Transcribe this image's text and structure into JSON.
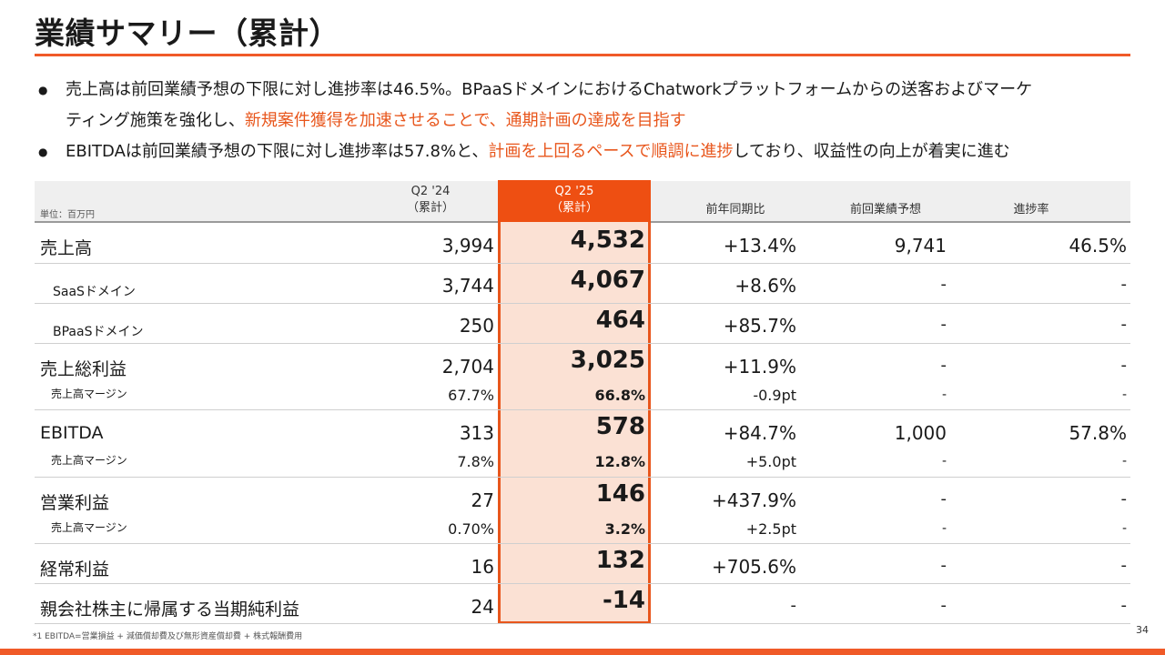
{
  "title": "業績サマリー（累計）",
  "bullets": [
    {
      "line1": "売上高は前回業績予想の下限に対し進捗率は46.5%。BPaaSドメインにおけるChatworkプラットフォームからの送客およびマーケ",
      "line2_normal": "ティング施策を強化し、",
      "line2_highlight": "新規案件獲得を加速させることで、通期計画の達成を目指す"
    },
    {
      "pre": "EBITDAは前回業績予想の下限に対し進捗率は57.8%と、",
      "highlight": "計画を上回るペースで順調に進捗",
      "post": "しており、収益性の向上が着実に進む"
    }
  ],
  "table": {
    "unit": "単位：百万円",
    "headers": {
      "q24_line1": "Q2 '24",
      "q24_line2": "（累計）",
      "q25_line1": "Q2 '25",
      "q25_line2": "（累計）",
      "yoy": "前年同期比",
      "prev_forecast": "前回業績予想",
      "progress": "進捗率"
    },
    "rows": {
      "sales": {
        "label": "売上高",
        "q24": "3,994",
        "q25": "4,532",
        "yoy": "+13.4%",
        "prev": "9,741",
        "progress": "46.5%"
      },
      "saas": {
        "label": "SaaSドメイン",
        "q24": "3,744",
        "q25": "4,067",
        "yoy": "+8.6%",
        "prev": "-",
        "progress": "-"
      },
      "bpaas": {
        "label": "BPaaSドメイン",
        "q24": "250",
        "q25": "464",
        "yoy": "+85.7%",
        "prev": "-",
        "progress": "-"
      },
      "gross": {
        "label": "売上総利益",
        "q24": "2,704",
        "q25": "3,025",
        "yoy": "+11.9%",
        "prev": "-",
        "progress": "-"
      },
      "gross_margin": {
        "label": "売上高マージン",
        "q24": "67.7%",
        "q25": "66.8%",
        "yoy": "-0.9pt",
        "prev": "-",
        "progress": "-"
      },
      "ebitda": {
        "label": "EBITDA",
        "q24": "313",
        "q25": "578",
        "yoy": "+84.7%",
        "prev": "1,000",
        "progress": "57.8%"
      },
      "ebitda_margin": {
        "label": "売上高マージン",
        "q24": "7.8%",
        "q25": "12.8%",
        "yoy": "+5.0pt",
        "prev": "-",
        "progress": "-"
      },
      "op": {
        "label": "営業利益",
        "q24": "27",
        "q25": "146",
        "yoy": "+437.9%",
        "prev": "-",
        "progress": "-"
      },
      "op_margin": {
        "label": "売上高マージン",
        "q24": "0.70%",
        "q25": "3.2%",
        "yoy": "+2.5pt",
        "prev": "-",
        "progress": "-"
      },
      "ordinary": {
        "label": "経常利益",
        "q24": "16",
        "q25": "132",
        "yoy": "+705.6%",
        "prev": "-",
        "progress": "-"
      },
      "net": {
        "label": "親会社株主に帰属する当期純利益",
        "q24": "24",
        "q25": "-14",
        "yoy": "-",
        "prev": "-",
        "progress": "-"
      }
    }
  },
  "footnote": "*1 EBITDA=営業損益 + 減価償却費及び無形資産償却費 + 株式報酬費用",
  "page_number": "34",
  "colors": {
    "accent": "#f05a28",
    "highlight_fill": "#fbe1d4",
    "highlight_header": "#ee4f12"
  }
}
